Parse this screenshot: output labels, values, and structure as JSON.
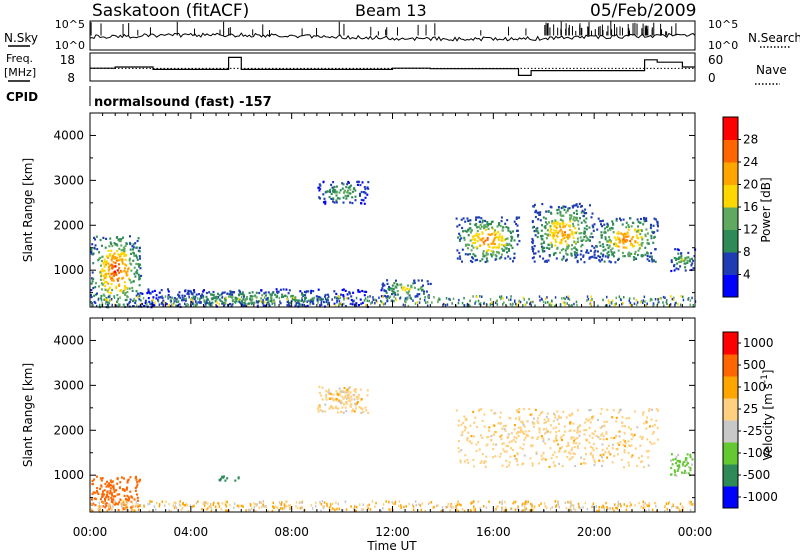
{
  "header": {
    "station": "Saskatoon (fitACF)",
    "beam": "Beam 13",
    "date": "05/Feb/2009"
  },
  "noise_panel": {
    "left_label": "N.Sky",
    "left_ticks": [
      "10^5",
      "10^0"
    ],
    "right_ticks": [
      "10^5",
      "10^0"
    ],
    "right_label": "N.Search"
  },
  "freq_panel": {
    "left_label_1": "Freq.",
    "left_label_2": "[MHz]",
    "left_ticks": [
      "18",
      "8"
    ],
    "right_ticks": [
      "60",
      "0"
    ],
    "right_label": "Nave"
  },
  "cpid_panel": {
    "label": "CPID",
    "text": "normalsound (fast) -157"
  },
  "colors": {
    "power_scale": [
      "#0000ff",
      "#1e3cb4",
      "#2e8b57",
      "#5faa5f",
      "#ffd700",
      "#ffa500",
      "#ff6600",
      "#ff0000"
    ],
    "velocity_scale": [
      "#ff0000",
      "#ff6600",
      "#ffa500",
      "#ffd080",
      "#c8c8c8",
      "#64c832",
      "#2e8b57",
      "#0000ff"
    ]
  },
  "chart_data": [
    {
      "type": "heatmap",
      "title": "",
      "xlabel": "",
      "ylabel": "Slant Range [km]",
      "xlim": [
        "00:00",
        "24:00"
      ],
      "ylim": [
        180,
        4500
      ],
      "y_ticks": [
        "1000",
        "2000",
        "3000",
        "4000"
      ],
      "colorbar": {
        "label": "Power [dB]",
        "ticks": [
          "4",
          "8",
          "12",
          "16",
          "20",
          "24",
          "28"
        ],
        "range": [
          0,
          32
        ]
      },
      "regions": [
        {
          "t_start": 0.0,
          "t_end": 2.0,
          "r_min": 200,
          "r_max": 1800,
          "peak_power": 30
        },
        {
          "t_start": 2.0,
          "t_end": 11.0,
          "r_min": 200,
          "r_max": 600,
          "peak_power": 14
        },
        {
          "t_start": 9.0,
          "t_end": 11.0,
          "r_min": 2500,
          "r_max": 3000,
          "peak_power": 16
        },
        {
          "t_start": 11.5,
          "t_end": 13.5,
          "r_min": 400,
          "r_max": 800,
          "peak_power": 20
        },
        {
          "t_start": 14.5,
          "t_end": 17.0,
          "r_min": 1200,
          "r_max": 2200,
          "peak_power": 26
        },
        {
          "t_start": 17.5,
          "t_end": 20.0,
          "r_min": 1200,
          "r_max": 2500,
          "peak_power": 24
        },
        {
          "t_start": 20.0,
          "t_end": 22.5,
          "r_min": 1200,
          "r_max": 2200,
          "peak_power": 26
        },
        {
          "t_start": 23.0,
          "t_end": 24.0,
          "r_min": 1000,
          "r_max": 1500,
          "peak_power": 16
        }
      ]
    },
    {
      "type": "heatmap",
      "title": "",
      "xlabel": "Time UT",
      "ylabel": "Slant Range [km]",
      "xlim": [
        "00:00",
        "24:00"
      ],
      "ylim": [
        180,
        4500
      ],
      "x_ticks": [
        "00:00",
        "04:00",
        "08:00",
        "12:00",
        "16:00",
        "20:00",
        "00:00"
      ],
      "y_ticks": [
        "1000",
        "2000",
        "3000",
        "4000"
      ],
      "colorbar": {
        "label": "Velocity [m s^-1]",
        "ticks": [
          "1000",
          "500",
          "100",
          "25",
          "-25",
          "-100",
          "-500",
          "-1000"
        ],
        "range": [
          -1000,
          1000
        ]
      },
      "regions": [
        {
          "t_start": 0.0,
          "t_end": 2.0,
          "r_min": 200,
          "r_max": 1000,
          "velocity": -150
        },
        {
          "t_start": 5.0,
          "t_end": 6.0,
          "r_min": 900,
          "r_max": 1000,
          "velocity": 600
        },
        {
          "t_start": 9.0,
          "t_end": 11.0,
          "r_min": 2400,
          "r_max": 3000,
          "velocity": 0
        },
        {
          "t_start": 14.5,
          "t_end": 22.5,
          "r_min": 1200,
          "r_max": 2500,
          "velocity": 0
        },
        {
          "t_start": 23.0,
          "t_end": 24.0,
          "r_min": 1000,
          "r_max": 1500,
          "velocity": 120
        }
      ]
    }
  ]
}
